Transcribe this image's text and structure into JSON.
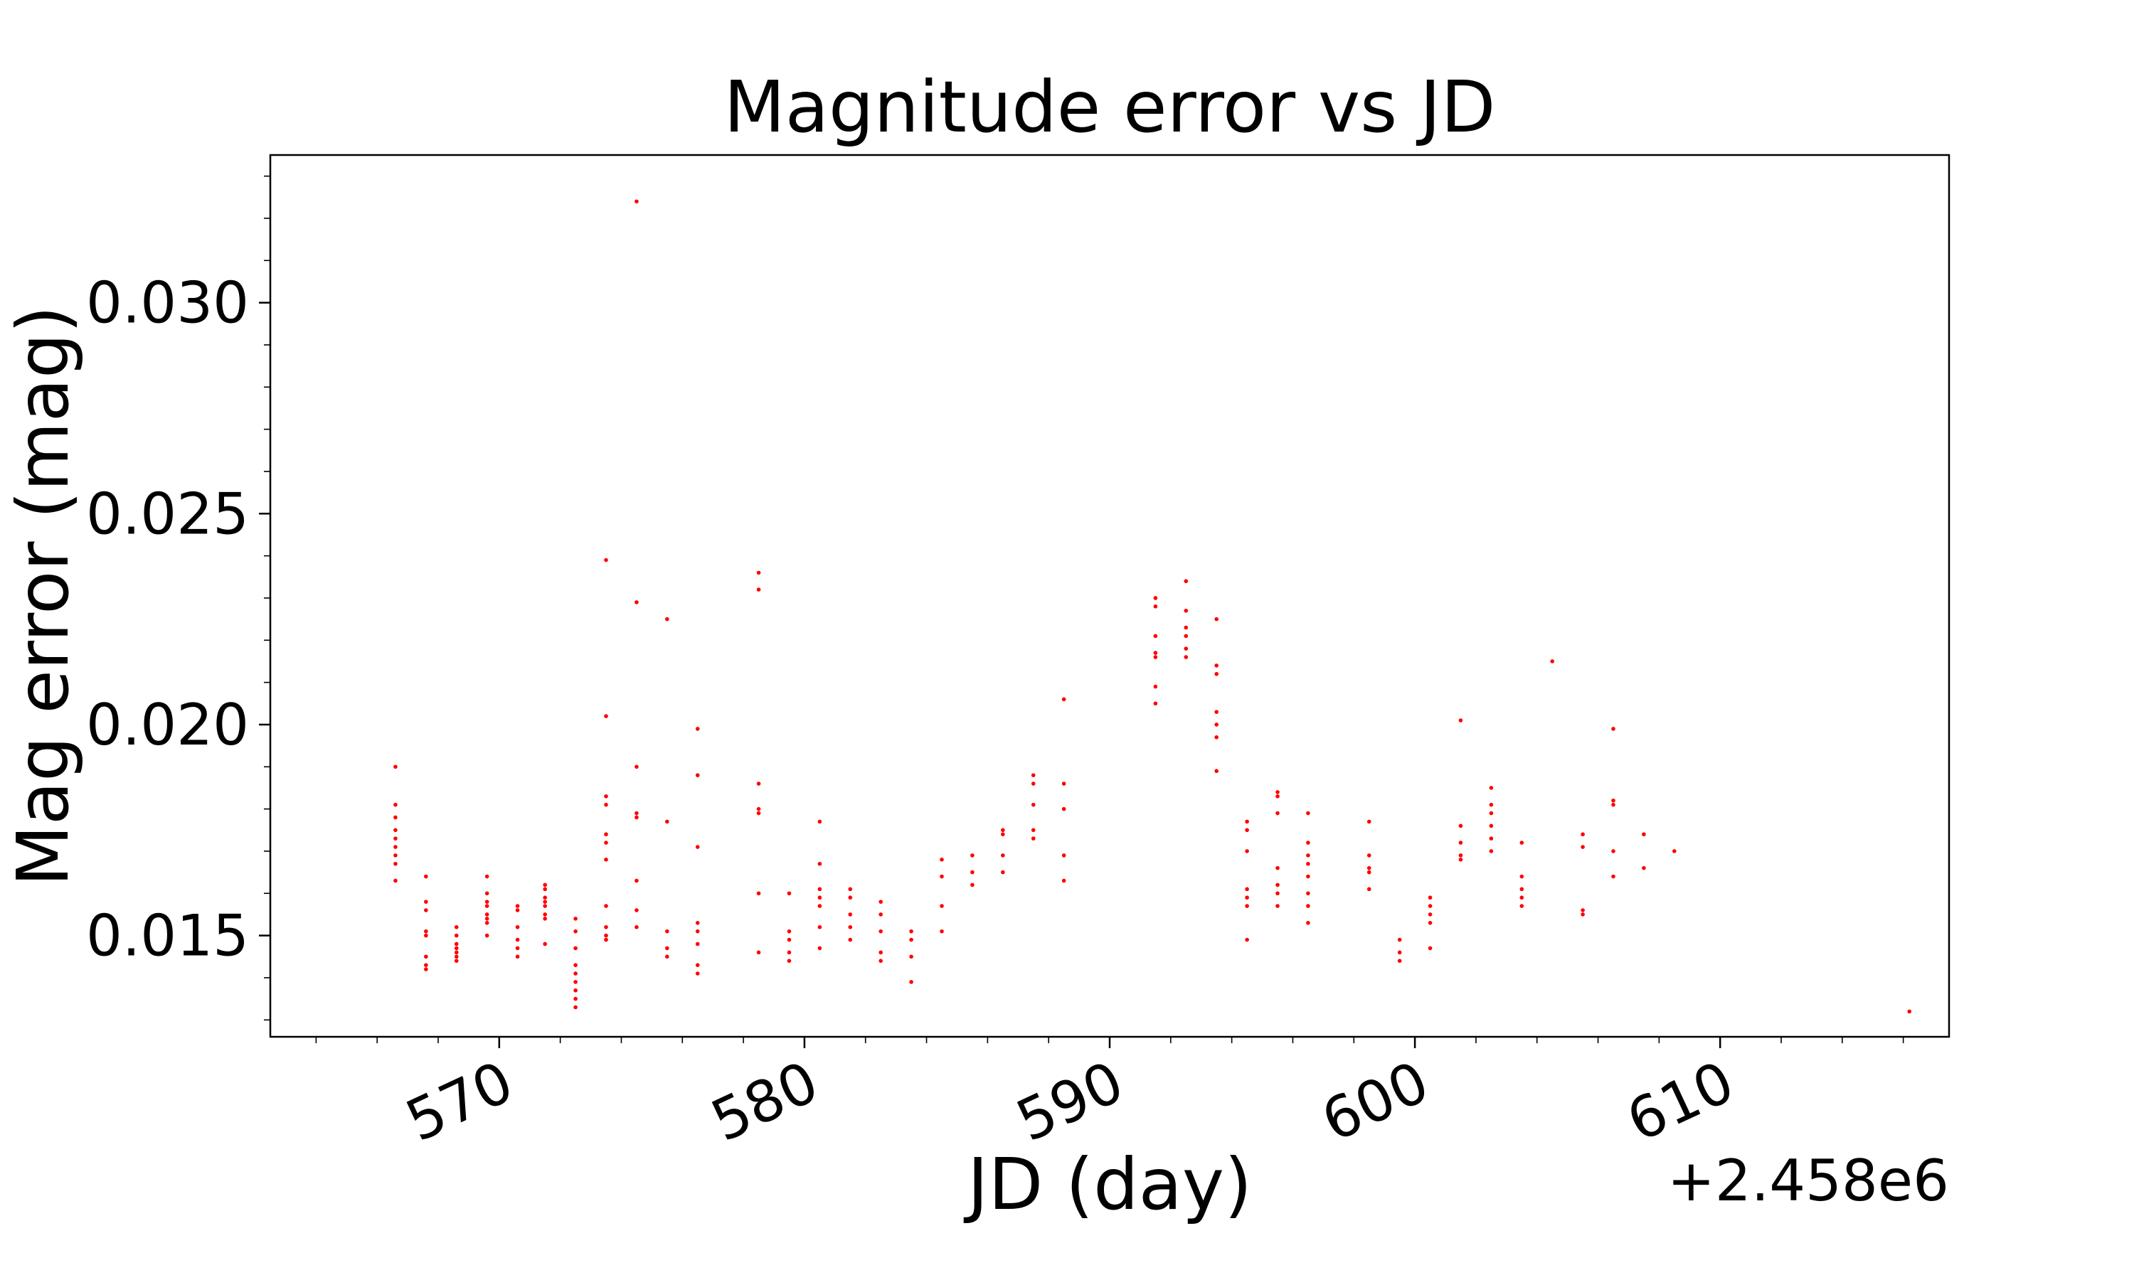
{
  "chart_data": {
    "type": "scatter",
    "title": "Magnitude error vs JD",
    "xlabel": "JD (day)",
    "ylabel": "Mag error (mag)",
    "x_offset_label": "+2.458e6",
    "xlim": [
      2458562.5,
      2458617.5
    ],
    "ylim": [
      0.0126,
      0.0335
    ],
    "xticks": [
      2458570,
      2458580,
      2458590,
      2458600,
      2458610
    ],
    "xtick_labels": [
      "570",
      "580",
      "590",
      "600",
      "610"
    ],
    "yticks": [
      0.015,
      0.02,
      0.025,
      0.03
    ],
    "ytick_labels": [
      "0.015",
      "0.020",
      "0.025",
      "0.030"
    ],
    "grid": false,
    "legend": "none",
    "marker_color": "#ff0000",
    "series": [
      {
        "x": [
          2458566.6,
          2458566.6,
          2458566.6,
          2458566.6,
          2458566.6,
          2458566.6,
          2458566.6,
          2458566.6,
          2458566.6,
          2458567.6,
          2458567.6,
          2458567.6,
          2458567.6,
          2458567.6,
          2458567.6,
          2458567.6,
          2458567.6,
          2458568.6,
          2458568.6,
          2458568.6,
          2458568.6,
          2458568.6,
          2458568.6,
          2458568.6,
          2458569.6,
          2458569.6,
          2458569.6,
          2458569.6,
          2458569.6,
          2458569.6,
          2458569.6,
          2458569.6,
          2458570.6,
          2458570.6,
          2458570.6,
          2458570.6,
          2458570.6,
          2458570.6,
          2458571.5,
          2458571.5,
          2458571.5,
          2458571.5,
          2458571.5,
          2458571.5,
          2458571.5,
          2458571.5,
          2458572.5,
          2458572.5,
          2458572.5,
          2458572.5,
          2458572.5,
          2458572.5,
          2458572.5,
          2458572.5,
          2458572.5,
          2458573.5,
          2458573.5,
          2458573.5,
          2458573.5,
          2458573.5,
          2458573.5,
          2458573.5,
          2458573.5,
          2458573.5,
          2458573.5,
          2458573.5,
          2458574.5,
          2458574.5,
          2458574.5,
          2458574.5,
          2458574.5,
          2458574.5,
          2458574.5,
          2458574.5,
          2458575.5,
          2458575.5,
          2458575.5,
          2458575.5,
          2458575.5,
          2458576.5,
          2458576.5,
          2458576.5,
          2458576.5,
          2458576.5,
          2458576.5,
          2458576.5,
          2458576.5,
          2458578.5,
          2458578.5,
          2458578.5,
          2458578.5,
          2458578.5,
          2458578.5,
          2458578.5,
          2458579.5,
          2458579.5,
          2458579.5,
          2458579.5,
          2458579.5,
          2458580.5,
          2458580.5,
          2458580.5,
          2458580.5,
          2458580.5,
          2458580.5,
          2458580.5,
          2458581.5,
          2458581.5,
          2458581.5,
          2458581.5,
          2458581.5,
          2458582.5,
          2458582.5,
          2458582.5,
          2458582.5,
          2458582.5,
          2458583.5,
          2458583.5,
          2458583.5,
          2458583.5,
          2458584.5,
          2458584.5,
          2458584.5,
          2458584.5,
          2458585.5,
          2458585.5,
          2458585.5,
          2458586.5,
          2458586.5,
          2458586.5,
          2458586.5,
          2458587.5,
          2458587.5,
          2458587.5,
          2458587.5,
          2458587.5,
          2458588.5,
          2458588.5,
          2458588.5,
          2458588.5,
          2458588.5,
          2458591.5,
          2458591.5,
          2458591.5,
          2458591.5,
          2458591.5,
          2458591.5,
          2458591.5,
          2458592.5,
          2458592.5,
          2458592.5,
          2458592.5,
          2458592.5,
          2458592.5,
          2458593.5,
          2458593.5,
          2458593.5,
          2458593.5,
          2458593.5,
          2458593.5,
          2458593.5,
          2458594.5,
          2458594.5,
          2458594.5,
          2458594.5,
          2458594.5,
          2458594.5,
          2458594.5,
          2458595.5,
          2458595.5,
          2458595.5,
          2458595.5,
          2458595.5,
          2458595.5,
          2458595.5,
          2458596.5,
          2458596.5,
          2458596.5,
          2458596.5,
          2458596.5,
          2458596.5,
          2458596.5,
          2458596.5,
          2458598.5,
          2458598.5,
          2458598.5,
          2458598.5,
          2458598.5,
          2458599.5,
          2458599.5,
          2458599.5,
          2458600.5,
          2458600.5,
          2458600.5,
          2458600.5,
          2458600.5,
          2458601.5,
          2458601.5,
          2458601.5,
          2458601.5,
          2458601.5,
          2458602.5,
          2458602.5,
          2458602.5,
          2458602.5,
          2458602.5,
          2458602.5,
          2458603.5,
          2458603.5,
          2458603.5,
          2458603.5,
          2458603.5,
          2458604.5,
          2458605.5,
          2458605.5,
          2458605.5,
          2458605.5,
          2458606.5,
          2458606.5,
          2458606.5,
          2458606.5,
          2458606.5,
          2458607.5,
          2458607.5,
          2458608.5,
          2458616.2
        ],
        "y": [
          0.019,
          0.0181,
          0.0178,
          0.0175,
          0.0173,
          0.0171,
          0.0169,
          0.0167,
          0.0163,
          0.0164,
          0.0158,
          0.0156,
          0.0151,
          0.015,
          0.0145,
          0.0143,
          0.0142,
          0.0152,
          0.015,
          0.0148,
          0.0147,
          0.0146,
          0.0145,
          0.0144,
          0.0164,
          0.016,
          0.0158,
          0.0157,
          0.0155,
          0.0154,
          0.0153,
          0.015,
          0.0157,
          0.0156,
          0.0152,
          0.0149,
          0.0147,
          0.0145,
          0.0162,
          0.0161,
          0.0159,
          0.0158,
          0.0157,
          0.0155,
          0.0154,
          0.0148,
          0.0154,
          0.0151,
          0.0147,
          0.0143,
          0.0141,
          0.0139,
          0.0137,
          0.0135,
          0.0133,
          0.0239,
          0.0202,
          0.0183,
          0.0181,
          0.0174,
          0.0172,
          0.0168,
          0.0157,
          0.0152,
          0.015,
          0.0149,
          0.0324,
          0.0229,
          0.019,
          0.0179,
          0.0178,
          0.0163,
          0.0156,
          0.0152,
          0.0225,
          0.0177,
          0.0151,
          0.0147,
          0.0145,
          0.0199,
          0.0188,
          0.0171,
          0.0153,
          0.0151,
          0.0148,
          0.0143,
          0.0141,
          0.0236,
          0.0232,
          0.0186,
          0.018,
          0.0179,
          0.016,
          0.0146,
          0.016,
          0.0151,
          0.0149,
          0.0146,
          0.0144,
          0.0177,
          0.0167,
          0.0161,
          0.0159,
          0.0157,
          0.0152,
          0.0147,
          0.0161,
          0.0159,
          0.0155,
          0.0152,
          0.0149,
          0.0158,
          0.0155,
          0.0151,
          0.0146,
          0.0144,
          0.0151,
          0.0149,
          0.0145,
          0.0139,
          0.0168,
          0.0164,
          0.0157,
          0.0151,
          0.0169,
          0.0165,
          0.0162,
          0.0175,
          0.0174,
          0.0169,
          0.0165,
          0.0188,
          0.0186,
          0.0181,
          0.0175,
          0.0173,
          0.0206,
          0.0186,
          0.018,
          0.0169,
          0.0163,
          0.023,
          0.0228,
          0.0221,
          0.0217,
          0.0216,
          0.0209,
          0.0205,
          0.0234,
          0.0227,
          0.0223,
          0.0221,
          0.0218,
          0.0216,
          0.0225,
          0.0214,
          0.0212,
          0.0203,
          0.02,
          0.0197,
          0.0189,
          0.0177,
          0.0175,
          0.017,
          0.0161,
          0.0159,
          0.0157,
          0.0149,
          0.0184,
          0.0183,
          0.0179,
          0.0166,
          0.0162,
          0.016,
          0.0157,
          0.0179,
          0.0172,
          0.0169,
          0.0167,
          0.0164,
          0.016,
          0.0157,
          0.0153,
          0.0177,
          0.0169,
          0.0166,
          0.0165,
          0.0161,
          0.0149,
          0.0146,
          0.0144,
          0.0159,
          0.0157,
          0.0155,
          0.0153,
          0.0147,
          0.0201,
          0.0176,
          0.0172,
          0.0169,
          0.0168,
          0.0185,
          0.0181,
          0.0179,
          0.0176,
          0.0173,
          0.017,
          0.0172,
          0.0164,
          0.0161,
          0.0159,
          0.0157,
          0.0215,
          0.0174,
          0.0171,
          0.0156,
          0.0155,
          0.0199,
          0.0182,
          0.0181,
          0.017,
          0.0164,
          0.0174,
          0.0166,
          0.017,
          0.0132
        ]
      }
    ]
  }
}
